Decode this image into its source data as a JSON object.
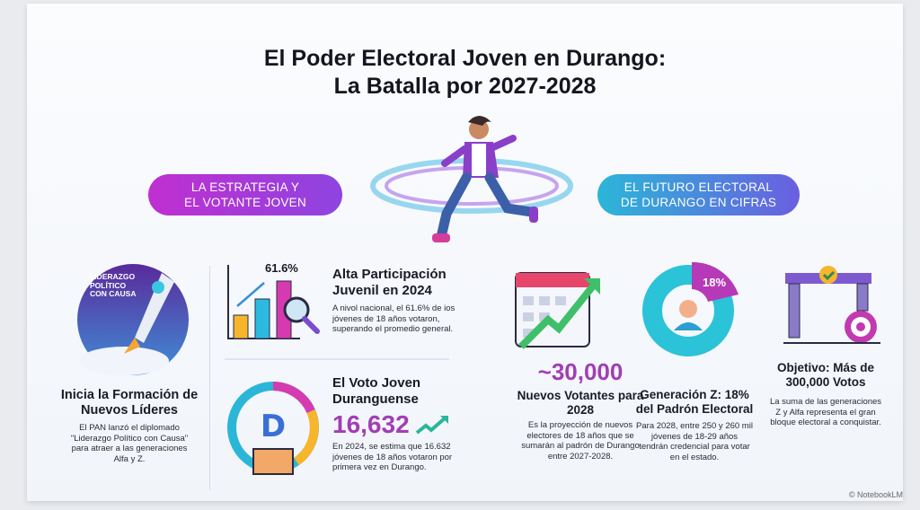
{
  "title": {
    "line1": "El Poder Electoral Joven en Durango:",
    "line2": "La Batalla por 2027-2028"
  },
  "sections": {
    "left_pill": {
      "line1": "LA ESTRATEGIA Y",
      "line2": "EL VOTANTE JOVEN"
    },
    "right_pill": {
      "line1": "EL FUTURO ELECTORAL",
      "line2": "DE DURANGO EN CIFRAS"
    }
  },
  "leaders": {
    "badge": "LIDERAZGO POLÍTICO CON CAUSA",
    "heading": "Inicia la Formación de Nuevos Líderes",
    "body": "El PAN lanzó el diplomado \"Liderazgo Político con Causa\" para atraer a las generaciones Alfa y Z."
  },
  "participation": {
    "chart_label": "61.6%",
    "heading": "Alta Participación Juvenil en 2024",
    "body": "A nivol nacional, el 61.6% de ios jóvenes de 18 años votaron, superando el promedio general."
  },
  "young_vote": {
    "heading": "El Voto Joven Duranguense",
    "number": "16,632",
    "body": "En 2024, se estima que 16.632 jóvenes de 18 años votaron por primera vez en Durango."
  },
  "new_voters": {
    "number": "~30,000",
    "heading": "Nuevos Votantes para 2028",
    "body": "Es la proyección de nuevos electores de 18 años que se sumarán al padrón de Durango entre 2027-2028."
  },
  "gen_z": {
    "donut_label": "18%",
    "percent": 18,
    "heading": "Generación Z: 18% del Padrón Electoral",
    "body": "Para 2028, entre 250 y 260 mil jóvenes de 18-29 años tendrán credencial para votar en el estado."
  },
  "goal": {
    "heading": "Objetivo: Más de 300,000 Votos",
    "body": "La suma de las generaciones Z y Alfa representa el gran bloque electoral a conquistar."
  },
  "footer": "© NotebookLM",
  "colors": {
    "magenta": "#c02fd0",
    "purple": "#8e44e0",
    "teal": "#2bb6d8",
    "accent_number": "#a23db5"
  }
}
